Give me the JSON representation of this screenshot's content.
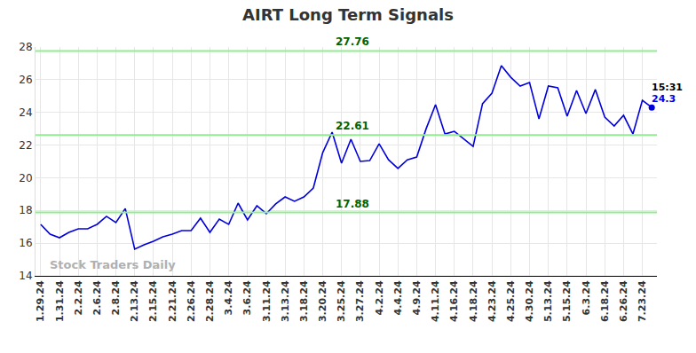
{
  "chart_data": {
    "type": "line",
    "title": "AIRT Long Term Signals",
    "categories": [
      "1.29.24",
      null,
      "1.31.24",
      null,
      "2.2.24",
      null,
      "2.6.24",
      null,
      "2.8.24",
      null,
      "2.13.24",
      null,
      "2.15.24",
      null,
      "2.21.24",
      null,
      "2.26.24",
      null,
      "2.28.24",
      null,
      "3.4.24",
      null,
      "3.6.24",
      null,
      "3.11.24",
      null,
      "3.13.24",
      null,
      "3.18.24",
      null,
      "3.20.24",
      null,
      "3.25.24",
      null,
      "3.27.24",
      null,
      "4.2.24",
      null,
      "4.4.24",
      null,
      "4.9.24",
      null,
      "4.11.24",
      null,
      "4.16.24",
      null,
      "4.18.24",
      null,
      "4.23.24",
      null,
      "4.25.24",
      null,
      "4.30.24",
      null,
      "5.13.24",
      null,
      "5.15.24",
      null,
      "6.3.24",
      null,
      "6.18.24",
      null,
      "6.26.24",
      null,
      "7.23.24",
      null
    ],
    "values": [
      17.15,
      16.55,
      16.33,
      16.66,
      16.88,
      16.88,
      17.15,
      17.64,
      17.26,
      18.12,
      15.63,
      15.9,
      16.12,
      16.39,
      16.55,
      16.77,
      16.77,
      17.53,
      16.66,
      17.47,
      17.15,
      18.45,
      17.42,
      18.29,
      17.8,
      18.4,
      18.83,
      18.56,
      18.83,
      19.37,
      21.54,
      22.79,
      20.89,
      22.36,
      21.0,
      21.05,
      22.08,
      21.1,
      20.57,
      21.1,
      21.27,
      23.0,
      24.47,
      22.68,
      22.84,
      22.4,
      21.92,
      24.53,
      25.18,
      26.86,
      26.15,
      25.61,
      25.83,
      23.6,
      25.61,
      25.5,
      23.77,
      25.34,
      23.93,
      25.4,
      23.71,
      23.17,
      23.82,
      22.68,
      24.74,
      24.3
    ],
    "color": "#0000dd",
    "ylim": [
      14,
      28
    ],
    "yticks": [
      14,
      16,
      18,
      20,
      22,
      24,
      26,
      28
    ],
    "grid": true,
    "levels": [
      27.76,
      22.61,
      17.88
    ],
    "last_point": {
      "time": "15:31",
      "value": 24.3
    },
    "watermark": "Stock Traders Daily"
  }
}
